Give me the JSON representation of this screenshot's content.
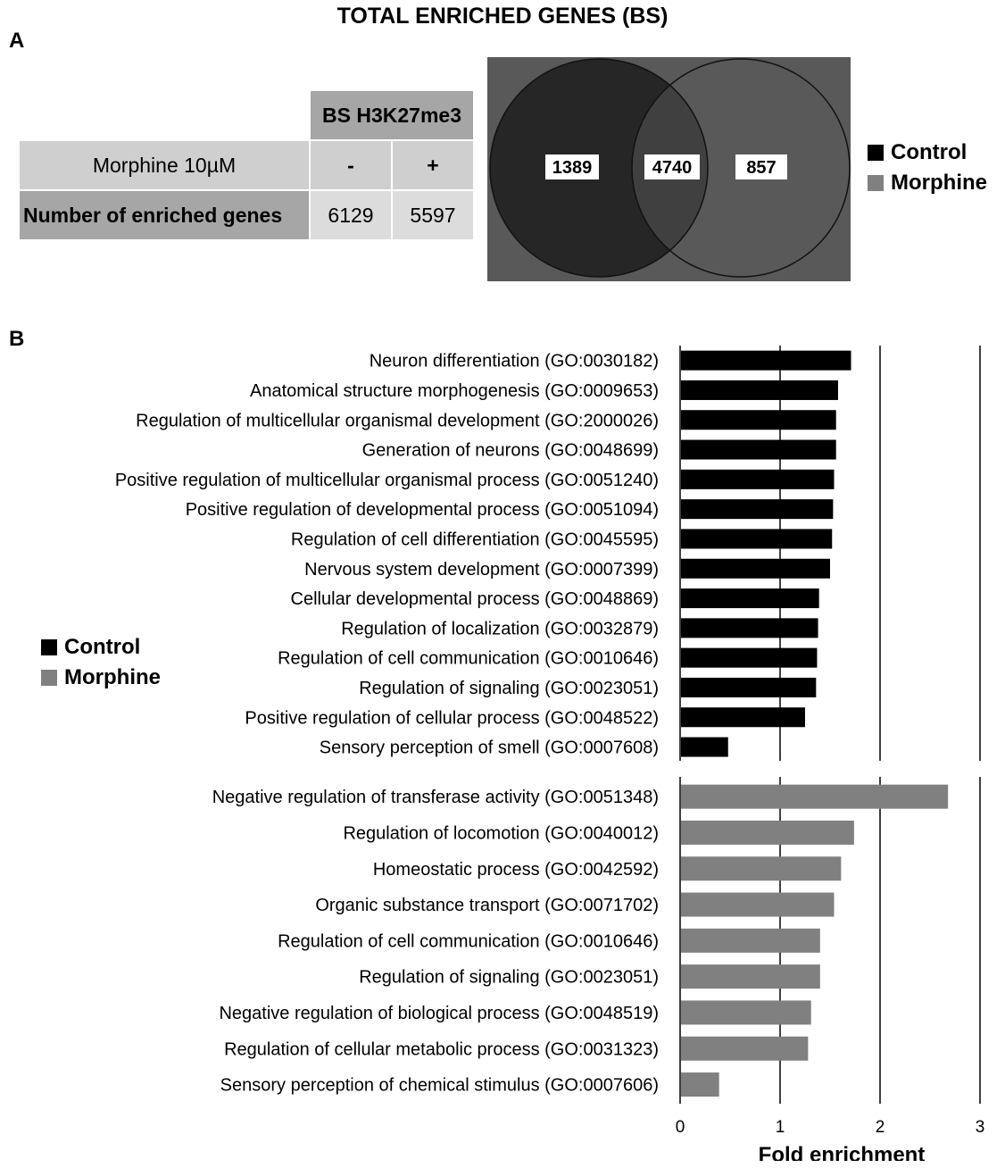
{
  "title": "TOTAL ENRICHED GENES (BS)",
  "panel_a_label": "A",
  "panel_b_label": "B",
  "table": {
    "group_header": "BS H3K27me3",
    "row1_label": "Morphine 10µM",
    "row1_values": [
      "-",
      "+"
    ],
    "row2_label": "Number of enriched genes",
    "row2_values": [
      "6129",
      "5597"
    ]
  },
  "venn": {
    "left_only": "1389",
    "overlap": "4740",
    "right_only": "857",
    "colors": {
      "background": "#595959",
      "left": "#262626",
      "overlap": "#404040",
      "right": "#595959"
    }
  },
  "legend_a": {
    "control": "Control",
    "morphine": "Morphine"
  },
  "legend_b": {
    "control": "Control",
    "morphine": "Morphine"
  },
  "colors": {
    "control": "#000000",
    "morphine": "#808080"
  },
  "chart_data": {
    "type": "bar",
    "orientation": "horizontal",
    "xlabel": "Fold enrichment",
    "xlim": [
      0,
      3
    ],
    "xticks": [
      "0",
      "1",
      "2",
      "3"
    ],
    "grid": true,
    "legend_position": "left",
    "series": [
      {
        "name": "Control",
        "categories": [
          "Neuron differentiation (GO:0030182)",
          "Anatomical structure morphogenesis (GO:0009653)",
          "Regulation of multicellular organismal development (GO:2000026)",
          "Generation of neurons (GO:0048699)",
          "Positive regulation of multicellular organismal process (GO:0051240)",
          "Positive regulation of developmental process (GO:0051094)",
          "Regulation of cell differentiation (GO:0045595)",
          "Nervous system development (GO:0007399)",
          "Cellular developmental process (GO:0048869)",
          "Regulation of localization (GO:0032879)",
          "Regulation of cell communication (GO:0010646)",
          "Regulation of signaling (GO:0023051)",
          "Positive regulation of cellular process (GO:0048522)",
          "Sensory perception of smell (GO:0007608)"
        ],
        "values": [
          1.71,
          1.58,
          1.56,
          1.56,
          1.54,
          1.53,
          1.52,
          1.5,
          1.39,
          1.38,
          1.37,
          1.36,
          1.25,
          0.48
        ]
      },
      {
        "name": "Morphine",
        "categories": [
          "Negative regulation of transferase activity (GO:0051348)",
          "Regulation of locomotion (GO:0040012)",
          "Homeostatic process (GO:0042592)",
          "Organic substance transport (GO:0071702)",
          "Regulation of cell communication (GO:0010646)",
          "Regulation of signaling (GO:0023051)",
          "Negative regulation of biological process (GO:0048519)",
          "Regulation of cellular metabolic process (GO:0031323)",
          "Sensory perception of chemical stimulus (GO:0007606)"
        ],
        "values": [
          2.68,
          1.74,
          1.61,
          1.54,
          1.4,
          1.4,
          1.31,
          1.28,
          0.39
        ]
      }
    ]
  }
}
